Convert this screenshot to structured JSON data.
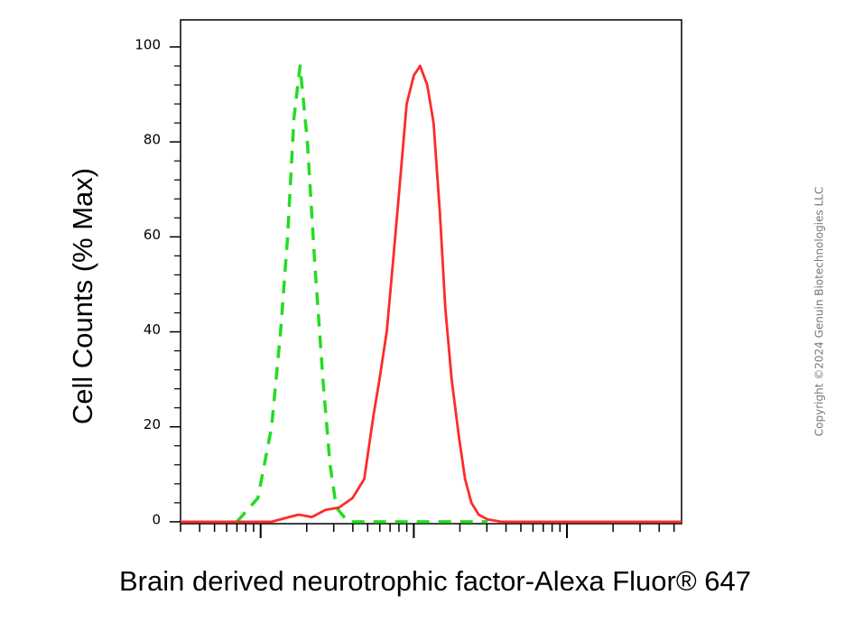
{
  "chart_data": {
    "type": "line",
    "x_label": "Brain derived neurotrophic factor-Alexa Fluor® 647",
    "y_label": "Cell Counts (% Max)",
    "annotation": "Copyright ©2024 Genuin Biotechnologies LLC",
    "xscale": "log",
    "xlim": [
      30,
      56000
    ],
    "xticks_labeled": false,
    "ylim": [
      -0.4,
      105.7
    ],
    "yticks": [
      0,
      20,
      40,
      60,
      80,
      100
    ],
    "grid": false,
    "series": [
      {
        "color": "#22dd22",
        "dash": true,
        "x": [
          70,
          96,
          118,
          135,
          150,
          165,
          181,
          202,
          225,
          255,
          284,
          312,
          372,
          1030,
          3030
        ],
        "values": [
          0,
          5,
          20,
          40,
          60,
          85,
          96,
          80,
          55,
          30,
          12,
          3,
          0,
          0,
          0
        ]
      },
      {
        "color": "#ff2a2a",
        "dash": false,
        "x": [
          30,
          118,
          154,
          177,
          216,
          265,
          325,
          398,
          475,
          543,
          597,
          666,
          733,
          805,
          898,
          1000,
          1100,
          1225,
          1347,
          1481,
          1607,
          1767,
          1968,
          2163,
          2378,
          2652,
          3033,
          3722,
          56000
        ],
        "values": [
          0,
          0,
          1,
          1.5,
          1,
          2.5,
          3,
          5,
          9,
          22,
          30,
          40,
          55,
          70,
          88,
          94,
          96,
          92,
          84,
          65,
          45,
          30,
          18,
          9,
          4,
          1.5,
          0.5,
          0,
          0
        ]
      }
    ]
  }
}
